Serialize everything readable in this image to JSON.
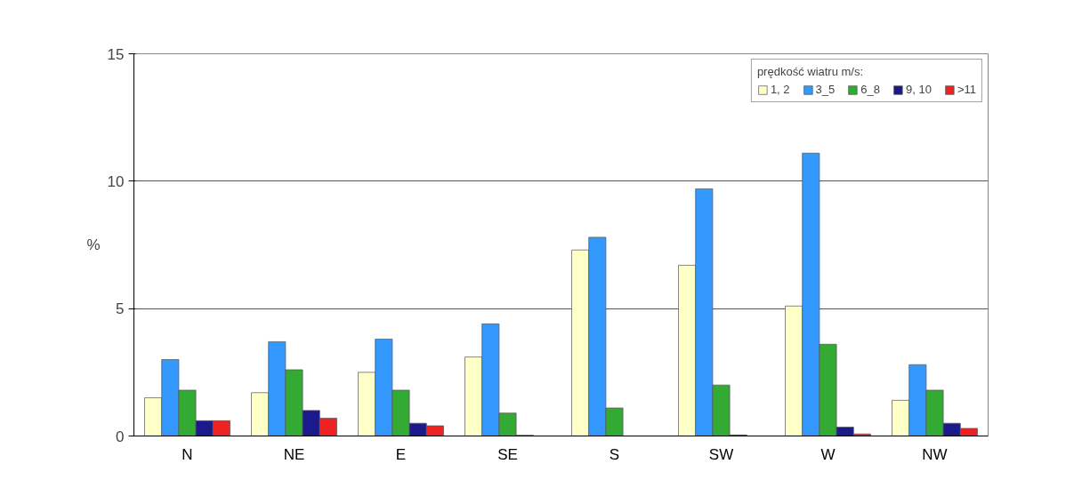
{
  "chart_data": {
    "type": "bar",
    "ylabel": "%",
    "legend_title": "prędkość wiatru m/s:",
    "categories": [
      "N",
      "NE",
      "E",
      "SE",
      "S",
      "SW",
      "W",
      "NW"
    ],
    "series": [
      {
        "name": "1, 2",
        "color": "#ffffc8",
        "values": [
          1.5,
          1.7,
          2.5,
          3.1,
          7.3,
          6.7,
          5.1,
          1.4
        ]
      },
      {
        "name": "3_5",
        "color": "#3399ff",
        "values": [
          3.0,
          3.7,
          3.8,
          4.4,
          7.8,
          9.7,
          11.1,
          2.8
        ]
      },
      {
        "name": "6_8",
        "color": "#33aa33",
        "values": [
          1.8,
          2.6,
          1.8,
          0.9,
          1.1,
          2.0,
          3.6,
          1.8
        ]
      },
      {
        "name": "9, 10",
        "color": "#1a1a8c",
        "values": [
          0.6,
          1.0,
          0.5,
          0.03,
          null,
          0.04,
          0.35,
          0.5
        ]
      },
      {
        "name": ">11",
        "color": "#ee2222",
        "values": [
          0.6,
          0.7,
          0.4,
          null,
          null,
          null,
          0.08,
          0.3
        ]
      }
    ],
    "ylim": [
      0,
      15
    ],
    "yticks": [
      0,
      5,
      10,
      15
    ],
    "grid": "y",
    "legend": "top right"
  }
}
